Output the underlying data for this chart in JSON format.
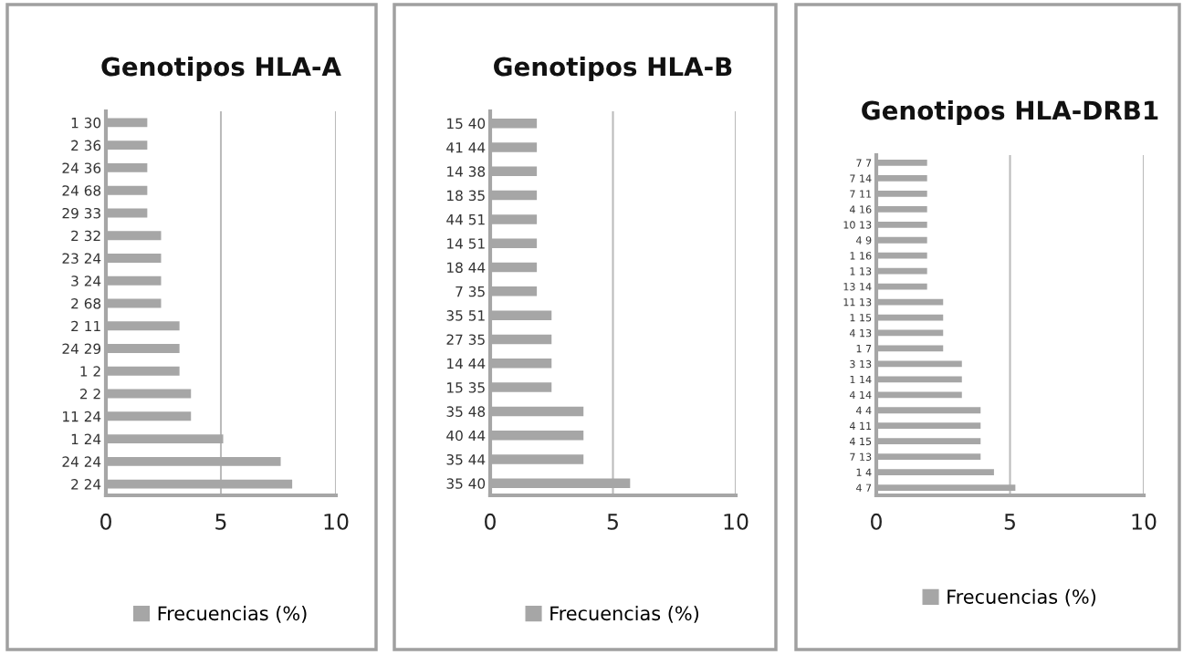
{
  "chart_data": [
    {
      "type": "bar",
      "orientation": "horizontal",
      "title": "Genotipos HLA-A",
      "categories": [
        "1 30",
        "2 36",
        "24 36",
        "24 68",
        "29 33",
        "2 32",
        "23 24",
        "3 24",
        "2 68",
        "2 11",
        "24 29",
        "1 2",
        "2 2",
        "11 24",
        "1 24",
        "24 24",
        "2 24"
      ],
      "series": [
        {
          "name": "Frecuencias (%)",
          "color": "#a6a6a6",
          "values": [
            1.8,
            1.8,
            1.8,
            1.8,
            1.8,
            2.4,
            2.4,
            2.4,
            2.4,
            3.2,
            3.2,
            3.2,
            3.7,
            3.7,
            5.1,
            7.6,
            8.1
          ]
        }
      ],
      "xlim": [
        0,
        10
      ],
      "xticks": [
        0,
        5,
        10
      ],
      "grid": "x",
      "legend": "bottom"
    },
    {
      "type": "bar",
      "orientation": "horizontal",
      "title": "Genotipos HLA-B",
      "categories": [
        "15 40",
        "41 44",
        "14 38",
        "18 35",
        "44 51",
        "14 51",
        "18 44",
        "7 35",
        "35 51",
        "27 35",
        "14 44",
        "15 35",
        "35 48",
        "40 44",
        "35 44",
        "35 40"
      ],
      "series": [
        {
          "name": "Frecuencias (%)",
          "color": "#a6a6a6",
          "values": [
            1.9,
            1.9,
            1.9,
            1.9,
            1.9,
            1.9,
            1.9,
            1.9,
            2.5,
            2.5,
            2.5,
            2.5,
            3.8,
            3.8,
            3.8,
            5.7
          ]
        }
      ],
      "xlim": [
        0,
        10
      ],
      "xticks": [
        0,
        5,
        10
      ],
      "grid": "x",
      "legend": "bottom"
    },
    {
      "type": "bar",
      "orientation": "horizontal",
      "title": "Genotipos HLA-DRB1",
      "categories": [
        "7 7",
        "7 14",
        "7 11",
        "4 16",
        "10 13",
        "4 9",
        "1 16",
        "1 13",
        "13 14",
        "11 13",
        "1 15",
        "4 13",
        "1 7",
        "3 13",
        "1 14",
        "4 14",
        "4 4",
        "4 11",
        "4 15",
        "7 13",
        "1 4",
        "4 7"
      ],
      "series": [
        {
          "name": "Frecuencias (%)",
          "color": "#a6a6a6",
          "values": [
            1.9,
            1.9,
            1.9,
            1.9,
            1.9,
            1.9,
            1.9,
            1.9,
            1.9,
            2.5,
            2.5,
            2.5,
            2.5,
            3.2,
            3.2,
            3.2,
            3.9,
            3.9,
            3.9,
            3.9,
            4.4,
            5.2
          ]
        }
      ],
      "xlim": [
        0,
        10
      ],
      "xticks": [
        0,
        5,
        10
      ],
      "grid": "x",
      "legend": "bottom"
    }
  ]
}
